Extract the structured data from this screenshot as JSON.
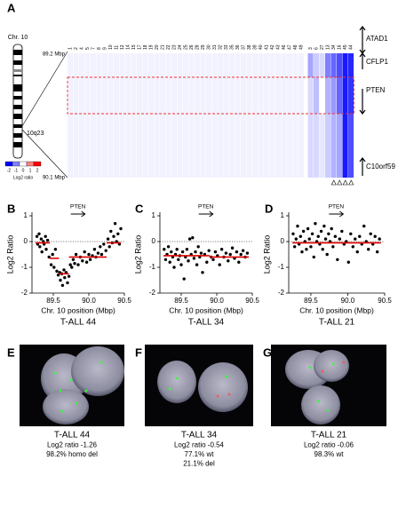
{
  "panel_labels": [
    "A",
    "B",
    "C",
    "D",
    "E",
    "F",
    "G"
  ],
  "heatmap": {
    "chromosome": "Chr. 10",
    "band": "10q23",
    "top_label": "89.2 Mbp",
    "bottom_label": "90.1 Mbp",
    "scale_title": "Log2 ratio",
    "scale_ticks": [
      -2,
      -1,
      0,
      1,
      2
    ],
    "columns": [
      "1",
      "2",
      "4",
      "5",
      "7",
      "8",
      "9",
      "10",
      "11",
      "12",
      "14",
      "15",
      "17",
      "18",
      "19",
      "20",
      "21",
      "22",
      "23",
      "24",
      "25",
      "26",
      "28",
      "29",
      "30",
      "31",
      "32",
      "33",
      "35",
      "36",
      "37",
      "38",
      "39",
      "40",
      "41",
      "42",
      "43",
      "46",
      "47",
      "48",
      "49",
      "3",
      "6",
      "27",
      "13",
      "34",
      "16",
      "45",
      "44"
    ],
    "values": [
      [
        -0.1,
        -0.1,
        -0.1
      ],
      [
        -0.1,
        -0.1,
        -0.1
      ],
      [
        -0.1,
        -0.1,
        -0.1
      ],
      [
        -0.1,
        -0.1,
        -0.1
      ],
      [
        -0.1,
        -0.1,
        -0.1
      ],
      [
        -0.1,
        -0.1,
        -0.1
      ],
      [
        -0.1,
        -0.1,
        -0.1
      ],
      [
        -0.1,
        -0.1,
        -0.1
      ],
      [
        -0.1,
        -0.1,
        -0.1
      ],
      [
        -0.1,
        -0.1,
        -0.1
      ],
      [
        -0.1,
        -0.1,
        -0.1
      ],
      [
        -0.1,
        -0.1,
        -0.1
      ],
      [
        -0.1,
        -0.1,
        -0.1
      ],
      [
        -0.1,
        -0.1,
        -0.1
      ],
      [
        -0.1,
        -0.1,
        -0.1
      ],
      [
        -0.1,
        -0.1,
        -0.1
      ],
      [
        -0.1,
        -0.1,
        -0.1
      ],
      [
        -0.1,
        -0.1,
        -0.1
      ],
      [
        -0.1,
        -0.1,
        -0.1
      ],
      [
        -0.1,
        -0.1,
        -0.1
      ],
      [
        -0.1,
        -0.1,
        -0.1
      ],
      [
        -0.1,
        -0.1,
        -0.1
      ],
      [
        -0.1,
        -0.1,
        -0.1
      ],
      [
        -0.1,
        -0.1,
        -0.1
      ],
      [
        -0.1,
        -0.1,
        -0.1
      ],
      [
        -0.1,
        -0.1,
        -0.1
      ],
      [
        -0.1,
        -0.1,
        -0.1
      ],
      [
        -0.1,
        -0.1,
        -0.1
      ],
      [
        -0.1,
        -0.1,
        -0.1
      ],
      [
        -0.1,
        -0.1,
        -0.1
      ],
      [
        -0.1,
        -0.1,
        -0.1
      ],
      [
        -0.1,
        -0.1,
        -0.1
      ],
      [
        -0.1,
        -0.1,
        -0.1
      ],
      [
        -0.1,
        -0.1,
        -0.1
      ],
      [
        -0.1,
        -0.1,
        -0.1
      ],
      [
        -0.1,
        -0.1,
        -0.1
      ],
      [
        -0.1,
        -0.1,
        -0.1
      ],
      [
        -0.1,
        -0.1,
        -0.1
      ],
      [
        -0.1,
        -0.1,
        -0.1
      ],
      [
        -0.1,
        -0.1,
        -0.1
      ],
      [
        -0.1,
        -0.1,
        -0.1
      ],
      [
        -0.7,
        -0.3,
        -0.3
      ],
      [
        -0.4,
        -0.5,
        -0.3
      ],
      [
        -0.3,
        0,
        -0.2
      ],
      [
        -1.0,
        -0.6,
        -0.4
      ],
      [
        -1.2,
        -0.8,
        -0.6
      ],
      [
        -1.4,
        -1.2,
        -0.7
      ],
      [
        -1.8,
        -1.8,
        -1.8
      ],
      [
        -1.7,
        -1.6,
        -1.4
      ]
    ],
    "genes": [
      "ATAD1",
      "CFLP1",
      "PTEN",
      "C10orf59"
    ]
  },
  "chart_data": [
    {
      "type": "scatter",
      "caption": "T-ALL 44",
      "annotation": "PTEN",
      "x_label": "Chr. 10 position (Mbp)",
      "y_label": "Log2 Ratio",
      "color": "#000000",
      "segment_color": "#e00000",
      "reference_line": 0,
      "xlim": [
        89.2,
        90.5
      ],
      "ylim": [
        -2,
        1
      ],
      "xticks": [
        89.5,
        {
          "value": 90,
          "label": "90.0"
        },
        90.5
      ],
      "yticks": [
        -2,
        -1,
        0,
        1
      ],
      "x": [
        89.27,
        89.28,
        89.3,
        89.31,
        89.33,
        89.34,
        89.36,
        89.37,
        89.39,
        89.4,
        89.42,
        89.44,
        89.47,
        89.49,
        89.51,
        89.53,
        89.55,
        89.57,
        89.59,
        89.6,
        89.62,
        89.63,
        89.65,
        89.66,
        89.68,
        89.7,
        89.72,
        89.74,
        89.76,
        89.78,
        89.8,
        89.82,
        89.85,
        89.88,
        89.91,
        89.94,
        89.97,
        90.0,
        90.02,
        90.05,
        90.08,
        90.1,
        90.13,
        90.16,
        90.18,
        90.21,
        90.24,
        90.27,
        90.29,
        90.31,
        90.33,
        90.35,
        90.37,
        90.39,
        90.41,
        90.43,
        90.45
      ],
      "values": [
        0.2,
        -0.1,
        0.3,
        -0.2,
        0.1,
        -0.4,
        0,
        -0.1,
        0.2,
        -0.3,
        0.05,
        -0.6,
        -0.9,
        -0.5,
        -1,
        -0.3,
        -1.15,
        -1.3,
        -1.2,
        -1.5,
        -1.25,
        -1.7,
        -1.1,
        -1.4,
        -1.2,
        -1.6,
        -1.35,
        -0.9,
        -1,
        -0.7,
        -0.85,
        -0.5,
        -0.9,
        -0.6,
        -0.75,
        -0.4,
        -0.8,
        -0.5,
        -0.7,
        -0.55,
        -0.3,
        -0.6,
        -0.45,
        -0.2,
        -0.5,
        -0.1,
        -0.35,
        0.1,
        -0.2,
        0.4,
        -0.05,
        0.2,
        0.7,
        0,
        0.3,
        -0.1,
        0.5
      ],
      "segments": [
        {
          "x": [
            89.25,
            89.45
          ],
          "value": -0.05
        },
        {
          "x": [
            89.45,
            89.58
          ],
          "value": -0.65
        },
        {
          "x": [
            89.58,
            89.72
          ],
          "value": -1.25
        },
        {
          "x": [
            89.72,
            90.25
          ],
          "value": -0.6
        },
        {
          "x": [
            90.25,
            90.45
          ],
          "value": -0.05
        }
      ]
    },
    {
      "type": "scatter",
      "caption": "T-ALL 34",
      "annotation": "PTEN",
      "x_label": "Chr. 10 position (Mbp)",
      "y_label": "Log2 Ratio",
      "color": "#000000",
      "segment_color": "#e00000",
      "reference_line": 0,
      "xlim": [
        89.2,
        90.5
      ],
      "ylim": [
        -2,
        1
      ],
      "xticks": [
        89.5,
        {
          "value": 90,
          "label": "90.0"
        },
        90.5
      ],
      "yticks": [
        -2,
        -1,
        0,
        1
      ],
      "x": [
        89.26,
        89.28,
        89.3,
        89.32,
        89.34,
        89.36,
        89.38,
        89.4,
        89.42,
        89.44,
        89.46,
        89.48,
        89.5,
        89.52,
        89.54,
        89.56,
        89.58,
        89.6,
        89.62,
        89.64,
        89.66,
        89.68,
        89.7,
        89.72,
        89.74,
        89.76,
        89.78,
        89.8,
        89.83,
        89.86,
        89.89,
        89.92,
        89.95,
        89.98,
        90.01,
        90.04,
        90.07,
        90.1,
        90.13,
        90.16,
        90.19,
        90.22,
        90.25,
        90.28,
        90.31,
        90.34,
        90.37,
        90.4,
        90.43
      ],
      "values": [
        -0.3,
        -0.7,
        -0.5,
        -0.2,
        -0.8,
        -0.4,
        -0.6,
        -1,
        -0.5,
        -0.3,
        -0.7,
        -0.55,
        -0.9,
        -0.4,
        -1.45,
        -0.6,
        -0.3,
        -0.75,
        0.1,
        -0.5,
        0.15,
        -0.65,
        -0.4,
        -0.9,
        -0.2,
        -0.6,
        -0.45,
        -1.2,
        -0.5,
        -0.8,
        -0.35,
        -0.6,
        -0.7,
        -0.4,
        -0.55,
        -0.9,
        -0.3,
        -0.6,
        -0.45,
        -0.75,
        -0.5,
        -0.25,
        -0.65,
        -0.4,
        -0.8,
        -0.5,
        -0.35,
        -0.6,
        -0.45
      ],
      "segments": [
        {
          "x": [
            89.25,
            89.9
          ],
          "value": -0.55
        },
        {
          "x": [
            89.9,
            90.45
          ],
          "value": -0.6
        }
      ]
    },
    {
      "type": "scatter",
      "caption": "T-ALL 21",
      "annotation": "PTEN",
      "x_label": "Chr. 10 position (Mbp)",
      "y_label": "Log2 Ratio",
      "color": "#000000",
      "segment_color": "#e00000",
      "reference_line": 0,
      "xlim": [
        89.2,
        90.5
      ],
      "ylim": [
        -2,
        1
      ],
      "xticks": [
        89.5,
        {
          "value": 90,
          "label": "90.0"
        },
        90.5
      ],
      "yticks": [
        -2,
        -1,
        0,
        1
      ],
      "x": [
        89.26,
        89.28,
        89.3,
        89.32,
        89.34,
        89.36,
        89.38,
        89.4,
        89.42,
        89.44,
        89.46,
        89.48,
        89.5,
        89.52,
        89.54,
        89.56,
        89.58,
        89.6,
        89.62,
        89.64,
        89.66,
        89.68,
        89.7,
        89.72,
        89.74,
        89.76,
        89.78,
        89.8,
        89.83,
        89.86,
        89.89,
        89.92,
        89.95,
        89.98,
        90.01,
        90.04,
        90.07,
        90.1,
        90.13,
        90.16,
        90.19,
        90.22,
        90.25,
        90.28,
        90.31,
        90.34,
        90.37,
        90.4,
        90.43
      ],
      "values": [
        0.3,
        -0.2,
        0.1,
        0.6,
        -0.1,
        0.2,
        -0.4,
        0.4,
        0,
        -0.3,
        0.5,
        0.1,
        -0.2,
        0.3,
        -0.6,
        0.7,
        0,
        0.2,
        -0.1,
        0.4,
        -0.3,
        0.6,
        0.1,
        -0.5,
        0.3,
        0,
        0.5,
        -0.2,
        0.2,
        -0.7,
        0.1,
        0.4,
        -0.1,
        0,
        -0.8,
        0.3,
        -0.2,
        0.1,
        -0.4,
        0.2,
        -0.1,
        0.6,
        0,
        -0.3,
        0.3,
        -0.1,
        0.2,
        -0.4,
        0.1
      ],
      "segments": [
        {
          "x": [
            89.25,
            89.95
          ],
          "value": -0.05
        },
        {
          "x": [
            89.95,
            90.45
          ],
          "value": -0.05
        }
      ]
    }
  ],
  "fish": [
    {
      "lines": [
        "T-ALL 44",
        "Log2 ratio -1.26",
        "98.2% homo del"
      ]
    },
    {
      "lines": [
        "T-ALL 34",
        "Log2 ratio -0.54",
        "77.1% wt",
        "21.1% del"
      ]
    },
    {
      "lines": [
        "T-ALL 21",
        "Log2 ratio -0.06",
        "98.3% wt"
      ]
    }
  ]
}
